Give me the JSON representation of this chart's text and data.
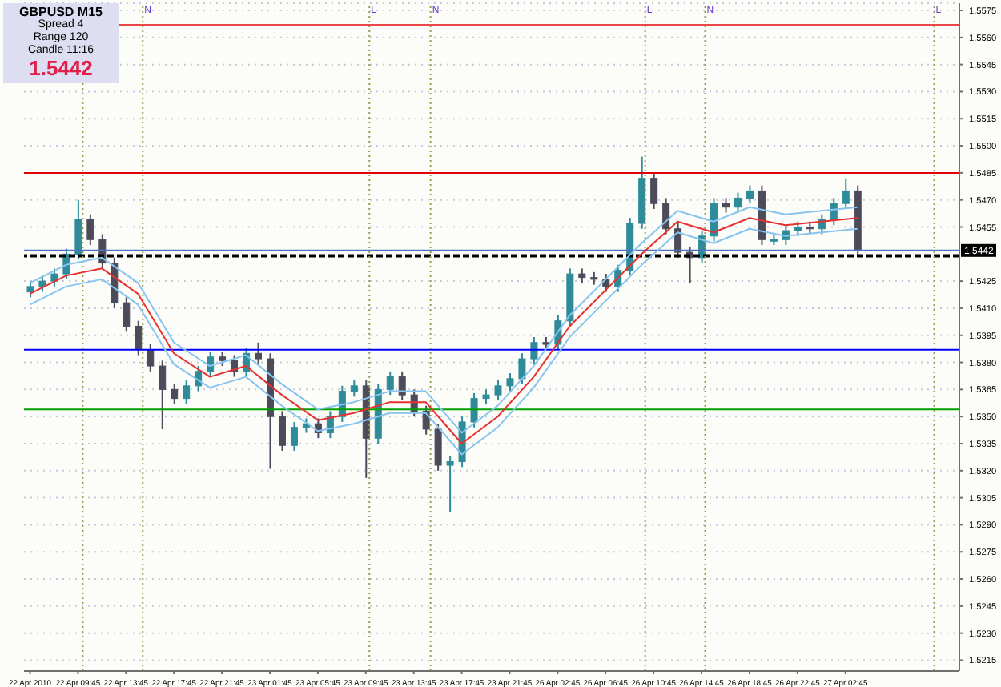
{
  "chart_data": {
    "type": "candlestick",
    "categories": [
      "22 Apr 2010",
      null,
      null,
      null,
      "22 Apr 09:45",
      null,
      null,
      null,
      "22 Apr 13:45",
      null,
      null,
      null,
      "22 Apr 17:45",
      null,
      null,
      null,
      "22 Apr 21:45",
      null,
      null,
      null,
      "23 Apr 01:45",
      null,
      null,
      null,
      "23 Apr 05:45",
      null,
      null,
      null,
      "23 Apr 09:45",
      null,
      null,
      null,
      "23 Apr 13:45",
      null,
      null,
      null,
      "23 Apr 17:45",
      null,
      null,
      null,
      "23 Apr 21:45",
      null,
      null,
      null,
      "26 Apr 02:45",
      null,
      null,
      null,
      "26 Apr 06:45",
      null,
      null,
      null,
      "26 Apr 10:45",
      null,
      null,
      null,
      "26 Apr 14:45",
      null,
      null,
      null,
      "26 Apr 18:45",
      null,
      null,
      null,
      "26 Apr 22:45",
      null,
      null,
      null,
      "27 Apr 02:45",
      null,
      null,
      null,
      null,
      null,
      null,
      null,
      null,
      null
    ],
    "ohlc": [
      [
        1.5419,
        1.5425,
        1.5416,
        1.5422
      ],
      [
        1.5422,
        1.5428,
        1.5419,
        1.5425
      ],
      [
        1.5425,
        1.5432,
        1.5422,
        1.5429
      ],
      [
        1.5429,
        1.5443,
        1.5426,
        1.544
      ],
      [
        1.544,
        1.547,
        1.5437,
        1.5459
      ],
      [
        1.5459,
        1.5462,
        1.5445,
        1.5448
      ],
      [
        1.5448,
        1.5451,
        1.5432,
        1.5435
      ],
      [
        1.5435,
        1.5438,
        1.541,
        1.5413
      ],
      [
        1.5413,
        1.5416,
        1.5397,
        1.54
      ],
      [
        1.54,
        1.5403,
        1.5384,
        1.5387
      ],
      [
        1.5387,
        1.539,
        1.5375,
        1.5378
      ],
      [
        1.5378,
        1.5381,
        1.5343,
        1.5365
      ],
      [
        1.5365,
        1.5368,
        1.5357,
        1.536
      ],
      [
        1.536,
        1.537,
        1.5357,
        1.5367
      ],
      [
        1.5367,
        1.5378,
        1.5364,
        1.5375
      ],
      [
        1.5375,
        1.5386,
        1.5372,
        1.5383
      ],
      [
        1.5383,
        1.5386,
        1.5378,
        1.5381
      ],
      [
        1.5381,
        1.5384,
        1.5372,
        1.5375
      ],
      [
        1.5375,
        1.5388,
        1.5372,
        1.5385
      ],
      [
        1.5385,
        1.5391,
        1.5379,
        1.5382
      ],
      [
        1.5382,
        1.5385,
        1.5321,
        1.535
      ],
      [
        1.535,
        1.5353,
        1.5331,
        1.5334
      ],
      [
        1.5334,
        1.5347,
        1.5331,
        1.5344
      ],
      [
        1.5344,
        1.5349,
        1.5341,
        1.5346
      ],
      [
        1.5346,
        1.5349,
        1.5338,
        1.5341
      ],
      [
        1.5341,
        1.5353,
        1.5338,
        1.535
      ],
      [
        1.535,
        1.5367,
        1.5347,
        1.5364
      ],
      [
        1.5364,
        1.537,
        1.5361,
        1.5367
      ],
      [
        1.5367,
        1.537,
        1.5316,
        1.5338
      ],
      [
        1.5338,
        1.5368,
        1.5335,
        1.5365
      ],
      [
        1.5365,
        1.5375,
        1.5362,
        1.5372
      ],
      [
        1.5372,
        1.5375,
        1.5359,
        1.5362
      ],
      [
        1.5362,
        1.5365,
        1.535,
        1.5353
      ],
      [
        1.5353,
        1.5356,
        1.534,
        1.5343
      ],
      [
        1.5343,
        1.5346,
        1.532,
        1.5323
      ],
      [
        1.5323,
        1.5328,
        1.5297,
        1.5325
      ],
      [
        1.5325,
        1.535,
        1.5322,
        1.5347
      ],
      [
        1.5347,
        1.5363,
        1.5344,
        1.536
      ],
      [
        1.536,
        1.5365,
        1.5357,
        1.5362
      ],
      [
        1.5362,
        1.537,
        1.5359,
        1.5367
      ],
      [
        1.5367,
        1.5374,
        1.5364,
        1.5371
      ],
      [
        1.5371,
        1.5385,
        1.5368,
        1.5382
      ],
      [
        1.5382,
        1.5394,
        1.5379,
        1.5391
      ],
      [
        1.5391,
        1.5394,
        1.5387,
        1.539
      ],
      [
        1.539,
        1.5406,
        1.5387,
        1.5403
      ],
      [
        1.5403,
        1.5432,
        1.54,
        1.5429
      ],
      [
        1.5429,
        1.5432,
        1.5424,
        1.5427
      ],
      [
        1.5427,
        1.543,
        1.5423,
        1.5426
      ],
      [
        1.5426,
        1.5429,
        1.5419,
        1.5422
      ],
      [
        1.5422,
        1.5434,
        1.5419,
        1.5431
      ],
      [
        1.5431,
        1.546,
        1.5428,
        1.5457
      ],
      [
        1.5457,
        1.5494,
        1.5454,
        1.5482
      ],
      [
        1.5482,
        1.5485,
        1.5465,
        1.5468
      ],
      [
        1.5468,
        1.5471,
        1.5451,
        1.5454
      ],
      [
        1.5454,
        1.5457,
        1.5438,
        1.5441
      ],
      [
        1.5441,
        1.5444,
        1.5424,
        1.5438
      ],
      [
        1.5438,
        1.5453,
        1.5435,
        1.545
      ],
      [
        1.545,
        1.5471,
        1.5447,
        1.5468
      ],
      [
        1.5468,
        1.5471,
        1.5463,
        1.5466
      ],
      [
        1.5466,
        1.5474,
        1.5463,
        1.5471
      ],
      [
        1.5471,
        1.5478,
        1.5468,
        1.5475
      ],
      [
        1.5475,
        1.5478,
        1.5445,
        1.5448
      ],
      [
        1.5448,
        1.5451,
        1.5445,
        1.5448
      ],
      [
        1.5448,
        1.5456,
        1.5445,
        1.5453
      ],
      [
        1.5453,
        1.5458,
        1.545,
        1.5455
      ],
      [
        1.5455,
        1.5458,
        1.5451,
        1.5454
      ],
      [
        1.5454,
        1.5462,
        1.5451,
        1.5459
      ],
      [
        1.5459,
        1.5471,
        1.5456,
        1.5468
      ],
      [
        1.5468,
        1.5482,
        1.5465,
        1.5475
      ],
      [
        1.5475,
        1.5478,
        1.5439,
        1.5442
      ],
      null,
      null,
      null,
      null,
      null,
      null,
      null,
      null
    ],
    "colors": [
      "#2e8b99",
      "#2e8b99",
      "#2e8b99",
      "#2e8b99",
      "#2e8b99",
      "#4b4b5a",
      "#4b4b5a",
      "#4b4b5a",
      "#4b4b5a",
      "#4b4b5a",
      "#4b4b5a",
      "#4b4b5a",
      "#4b4b5a",
      "#2e8b99",
      "#2e8b99",
      "#2e8b99",
      "#4b4b5a",
      "#4b4b5a",
      "#2e8b99",
      "#4b4b5a",
      "#4b4b5a",
      "#4b4b5a",
      "#2e8b99",
      "#2e8b99",
      "#4b4b5a",
      "#2e8b99",
      "#2e8b99",
      "#2e8b99",
      "#4b4b5a",
      "#2e8b99",
      "#2e8b99",
      "#4b4b5a",
      "#4b4b5a",
      "#4b4b5a",
      "#4b4b5a",
      "#2e8b99",
      "#2e8b99",
      "#2e8b99",
      "#2e8b99",
      "#2e8b99",
      "#2e8b99",
      "#2e8b99",
      "#2e8b99",
      "#4b4b5a",
      "#2e8b99",
      "#2e8b99",
      "#4b4b5a",
      "#4b4b5a",
      "#4b4b5a",
      "#2e8b99",
      "#2e8b99",
      "#2e8b99",
      "#4b4b5a",
      "#4b4b5a",
      "#4b4b5a",
      "#4b4b5a",
      "#2e8b99",
      "#2e8b99",
      "#4b4b5a",
      "#2e8b99",
      "#2e8b99",
      "#4b4b5a",
      "#2e8b99",
      "#2e8b99",
      "#2e8b99",
      "#4b4b5a",
      "#2e8b99",
      "#2e8b99",
      "#2e8b99",
      "#4b4b5a",
      null,
      null,
      null,
      null,
      null,
      null,
      null,
      null
    ],
    "series": [
      {
        "type": "line",
        "color": "#87c4f0",
        "values": [
          1.5424,
          null,
          null,
          1.5434,
          null,
          null,
          1.5438,
          null,
          null,
          1.5424,
          null,
          null,
          1.5391,
          null,
          null,
          1.5378,
          null,
          null,
          1.5384,
          null,
          null,
          1.5368,
          null,
          null,
          1.5354,
          null,
          null,
          1.5358,
          null,
          null,
          1.5364,
          null,
          null,
          1.5364,
          null,
          null,
          1.5341,
          null,
          null,
          1.5356,
          null,
          null,
          1.5378,
          null,
          null,
          1.5406,
          null,
          null,
          1.5426,
          null,
          null,
          1.5446,
          null,
          null,
          1.5464,
          null,
          null,
          1.5458,
          null,
          null,
          1.5466,
          null,
          null,
          1.5462,
          null,
          null,
          1.5464,
          null,
          null,
          1.5466,
          null,
          null,
          null,
          null,
          null,
          null,
          null,
          null
        ]
      },
      {
        "type": "line",
        "color": "#e83030",
        "values": [
          1.5418,
          null,
          null,
          1.5428,
          null,
          null,
          1.5432,
          null,
          null,
          1.5418,
          null,
          null,
          1.5385,
          null,
          null,
          1.5372,
          null,
          null,
          1.5378,
          null,
          null,
          1.5362,
          null,
          null,
          1.5348,
          null,
          null,
          1.5352,
          null,
          null,
          1.5358,
          null,
          null,
          1.5358,
          null,
          null,
          1.5335,
          null,
          null,
          1.535,
          null,
          null,
          1.5372,
          null,
          null,
          1.54,
          null,
          null,
          1.542,
          null,
          null,
          1.544,
          null,
          null,
          1.5458,
          null,
          null,
          1.5452,
          null,
          null,
          1.546,
          null,
          null,
          1.5456,
          null,
          null,
          1.5458,
          null,
          null,
          1.546,
          null,
          null,
          null,
          null,
          null,
          null,
          null,
          null
        ]
      },
      {
        "type": "line",
        "color": "#87c4f0",
        "values": [
          1.5412,
          null,
          null,
          1.5422,
          null,
          null,
          1.5426,
          null,
          null,
          1.5412,
          null,
          null,
          1.5379,
          null,
          null,
          1.5366,
          null,
          null,
          1.5372,
          null,
          null,
          1.5356,
          null,
          null,
          1.5342,
          null,
          null,
          1.5346,
          null,
          null,
          1.5352,
          null,
          null,
          1.5352,
          null,
          null,
          1.5329,
          null,
          null,
          1.5344,
          null,
          null,
          1.5366,
          null,
          null,
          1.5394,
          null,
          null,
          1.5414,
          null,
          null,
          1.5434,
          null,
          null,
          1.5452,
          null,
          null,
          1.5446,
          null,
          null,
          1.5454,
          null,
          null,
          1.545,
          null,
          null,
          1.5452,
          null,
          null,
          1.5454,
          null,
          null,
          null,
          null,
          null,
          null,
          null,
          null
        ]
      }
    ],
    "marker": "none",
    "line_style": "solid",
    "grid": "y",
    "legend": false,
    "ylim": [
      1.5209,
      1.5579
    ],
    "yticks": [
      {
        "value": 1.5215,
        "label": "1.5215"
      },
      {
        "value": 1.523,
        "label": "1.5230"
      },
      {
        "value": 1.5245,
        "label": "1.5245"
      },
      {
        "value": 1.526,
        "label": "1.5260"
      },
      {
        "value": 1.5275,
        "label": "1.5275"
      },
      {
        "value": 1.529,
        "label": "1.5290"
      },
      {
        "value": 1.5305,
        "label": "1.5305"
      },
      {
        "value": 1.532,
        "label": "1.5320"
      },
      {
        "value": 1.5335,
        "label": "1.5335"
      },
      {
        "value": 1.535,
        "label": "1.5350"
      },
      {
        "value": 1.5365,
        "label": "1.5365"
      },
      {
        "value": 1.538,
        "label": "1.5380"
      },
      {
        "value": 1.5395,
        "label": "1.5395"
      },
      {
        "value": 1.541,
        "label": "1.5410"
      },
      {
        "value": 1.5425,
        "label": "1.5425"
      },
      {
        "value": 1.5455,
        "label": "1.5455"
      },
      {
        "value": 1.547,
        "label": "1.5470"
      },
      {
        "value": 1.5485,
        "label": "1.5485"
      },
      {
        "value": 1.55,
        "label": "1.5500"
      },
      {
        "value": 1.5515,
        "label": "1.5515"
      },
      {
        "value": 1.553,
        "label": "1.5530"
      },
      {
        "value": 1.5545,
        "label": "1.5545"
      },
      {
        "value": 1.556,
        "label": "1.5560"
      },
      {
        "value": 1.5575,
        "label": "1.5575"
      }
    ],
    "ref_lines": [
      {
        "axis": "y",
        "value": 1.5567,
        "color": "#e84848",
        "line_style": "solid"
      },
      {
        "axis": "y",
        "value": 1.5485,
        "color": "#e00000",
        "line_style": "solid"
      },
      {
        "axis": "y",
        "value": 1.5442,
        "label": "1.5442",
        "color": "#5070c0",
        "line_style": "solid"
      },
      {
        "axis": "y",
        "value": 1.5439,
        "color": "#000000",
        "line_style": "dashed"
      },
      {
        "axis": "y",
        "value": 1.5387,
        "color": "#0000ff",
        "line_style": "solid"
      },
      {
        "axis": "y",
        "value": 1.5354,
        "color": "#00a000",
        "line_style": "solid"
      }
    ],
    "annotations": [
      "GBPUSD  M15",
      "Spread  4",
      "Range  120",
      "Candle  11:16",
      "1.5442",
      "N",
      "L",
      "N",
      "L",
      "N",
      "L"
    ]
  }
}
